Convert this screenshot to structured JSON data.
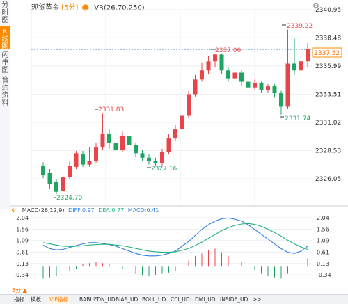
{
  "side_tabs": [
    {
      "label": "分时图",
      "active": false
    },
    {
      "label": "K线图",
      "active": true
    },
    {
      "label": "闪电图",
      "active": false
    },
    {
      "label": "合约资料",
      "active": false
    }
  ],
  "header": {
    "symbol": "现货黄金",
    "period": "[5分]",
    "vr_label": "VR(26,70,250)"
  },
  "price_axis": {
    "ticks": [
      "2340.95",
      "2338.48",
      "2335.99",
      "2333.51",
      "2331.02",
      "2328.53",
      "2326.05"
    ],
    "current_price": "2337.52"
  },
  "annotations": {
    "high": "2339.22",
    "mid_high": "2337.06",
    "left_high": "2331.83",
    "low_left": "2324.70",
    "low_mid": "2327.16",
    "low_right": "2331.74"
  },
  "macd": {
    "title": "MACD(26,12,9)",
    "diff_label": "DIFF:0.97",
    "dea_label": "DEA:0.77",
    "macd_label": "MACD:0.41",
    "ticks_left": [
      "2.04",
      "1.56",
      "1.09",
      "0.61",
      "0.13",
      "-0.34"
    ],
    "ticks_right": [
      "2.04",
      "1.56",
      "1.09",
      "0.61",
      "0.13",
      "-0.34"
    ]
  },
  "bottom_tabs": [
    "指标",
    "模板",
    "VIP指标",
    "BABUFDN_UD",
    "BIAS_UD",
    "BOLL_UD",
    "CCI_UD",
    "DMI_UD",
    "INSIDE_UD",
    ">>"
  ],
  "period_badge": "5分",
  "colors": {
    "up": "#e8454b",
    "down": "#1fa463",
    "accent": "#ff8a00",
    "diff": "#2f7fe0",
    "dea": "#22b07d",
    "current_line": "#3a8ad6"
  }
}
